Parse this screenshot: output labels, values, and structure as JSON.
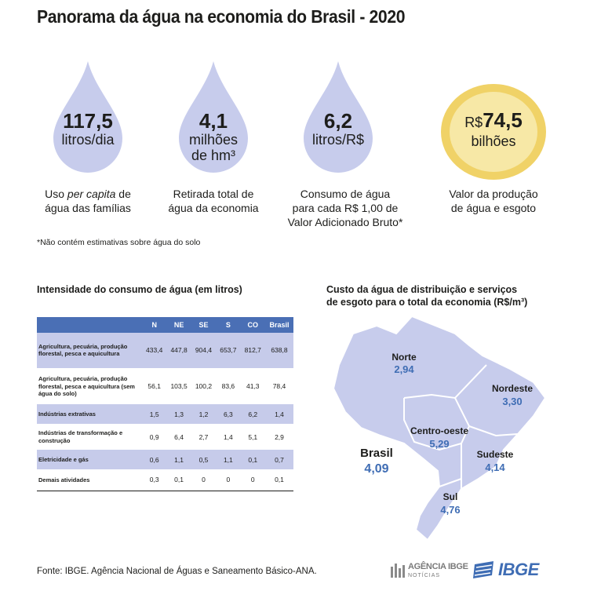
{
  "title": "Panorama da água na economia do Brasil - 2020",
  "indicators": [
    {
      "value": "117,5",
      "unit_line1": "litros/dia",
      "unit_line2": "",
      "caption_line1_pre": "Uso ",
      "caption_line1_em": "per capita",
      "caption_line1_post": " de",
      "caption_line2": "água das famílias",
      "caption_line3": ""
    },
    {
      "value": "4,1",
      "unit_line1": "milhões",
      "unit_line2": "de hm³",
      "caption_line1_pre": "Retirada total de",
      "caption_line1_em": "",
      "caption_line1_post": "",
      "caption_line2": "água da economia",
      "caption_line3": ""
    },
    {
      "value": "6,2",
      "unit_line1": "litros/R$",
      "unit_line2": "",
      "caption_line1_pre": "Consumo de água",
      "caption_line1_em": "",
      "caption_line1_post": "",
      "caption_line2": "para cada R$ 1,00 de",
      "caption_line3": "Valor Adicionado Bruto*"
    },
    {
      "prefix": "R$",
      "value": "74,5",
      "unit_line1": "bilhões",
      "unit_line2": "",
      "caption_line1_pre": "Valor da produção",
      "caption_line1_em": "",
      "caption_line1_post": "",
      "caption_line2": "de água e esgoto",
      "caption_line3": ""
    }
  ],
  "footnote": "*Não contém estimativas sobre água do solo",
  "table": {
    "title": "Intensidade do consumo de água (em litros)",
    "headers": [
      "",
      "N",
      "NE",
      "SE",
      "S",
      "CO",
      "Brasil"
    ],
    "rows": [
      {
        "label": "Agricultura, pecuária, produção florestal, pesca e aquicultura",
        "values": [
          "433,4",
          "447,8",
          "904,4",
          "653,7",
          "812,7",
          "638,8"
        ]
      },
      {
        "label": "Agricultura, pecuária, produção florestal, pesca e aquicultura (sem água do solo)",
        "values": [
          "56,1",
          "103,5",
          "100,2",
          "83,6",
          "41,3",
          "78,4"
        ]
      },
      {
        "label": "Indústrias extrativas",
        "values": [
          "1,5",
          "1,3",
          "1,2",
          "6,3",
          "6,2",
          "1,4"
        ]
      },
      {
        "label": "Indústrias de transformação e construção",
        "values": [
          "0,9",
          "6,4",
          "2,7",
          "1,4",
          "5,1",
          "2,9"
        ]
      },
      {
        "label": "Eletricidade e gás",
        "values": [
          "0,6",
          "1,1",
          "0,5",
          "1,1",
          "0,1",
          "0,7"
        ]
      },
      {
        "label": "Demais atividades",
        "values": [
          "0,3",
          "0,1",
          "0",
          "0",
          "0",
          "0,1"
        ]
      }
    ]
  },
  "map": {
    "title_line1": "Custo da água de distribuição e serviços",
    "title_line2": "de esgoto para o total da economia (R$/m³)",
    "regions": [
      {
        "name": "Norte",
        "value": "2,94"
      },
      {
        "name": "Nordeste",
        "value": "3,30"
      },
      {
        "name": "Centro-oeste",
        "value": "5,29"
      },
      {
        "name": "Sudeste",
        "value": "4,14"
      },
      {
        "name": "Sul",
        "value": "4,76"
      }
    ],
    "country": {
      "name": "Brasil",
      "value": "4,09"
    }
  },
  "source": "Fonte: IBGE. Agência Nacional de Águas e Saneamento Básico-ANA.",
  "logos": {
    "agencia_line1": "AGÊNCIA IBGE",
    "agencia_line2": "NOTÍCIAS",
    "ibge": "IBGE"
  },
  "colors": {
    "drop": "#c7ccec",
    "gold_outer": "#f0d267",
    "gold_inner": "#f7e8a6",
    "table_header": "#4a6fb5",
    "table_shade": "#c6cbea",
    "map_fill": "#c7ccec",
    "map_value": "#3f6db4"
  }
}
